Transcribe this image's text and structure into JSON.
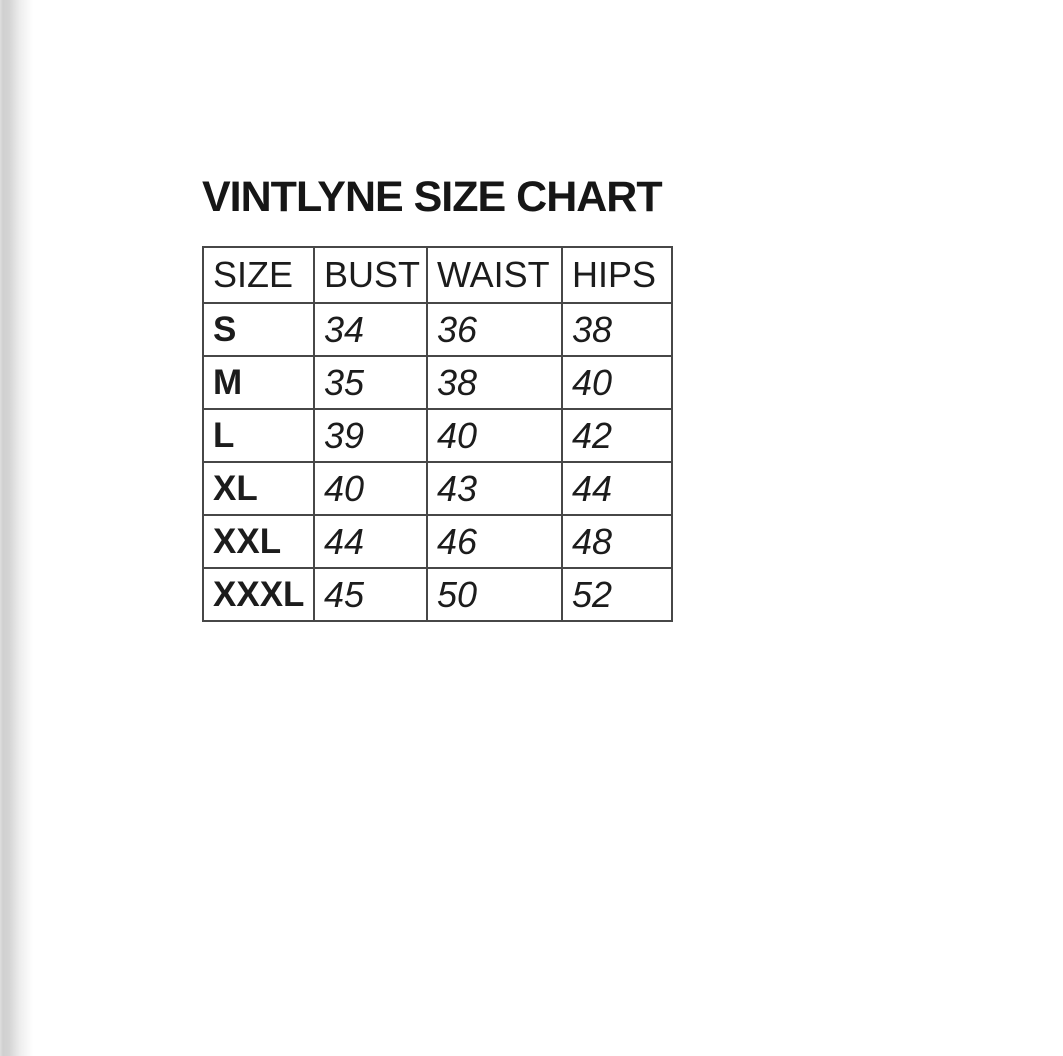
{
  "page": {
    "title": "VINTLYNE SIZE CHART"
  },
  "table": {
    "headers": [
      "SIZE",
      "BUST",
      "WAIST",
      "HIPS"
    ],
    "rows": [
      {
        "size": "S",
        "bust": "34",
        "waist": "36",
        "hips": "38"
      },
      {
        "size": "M",
        "bust": "35",
        "waist": "38",
        "hips": "40"
      },
      {
        "size": "L",
        "bust": "39",
        "waist": "40",
        "hips": "42"
      },
      {
        "size": "XL",
        "bust": "40",
        "waist": "43",
        "hips": "44"
      },
      {
        "size": "XXL",
        "bust": "44",
        "waist": "46",
        "hips": "48"
      },
      {
        "size": "XXXL",
        "bust": "45",
        "waist": "50",
        "hips": "52"
      }
    ]
  },
  "colors": {
    "background": "#ffffff",
    "text": "#1c1c1c",
    "table_border": "#474747",
    "left_gutter": "#d0d0d0"
  }
}
